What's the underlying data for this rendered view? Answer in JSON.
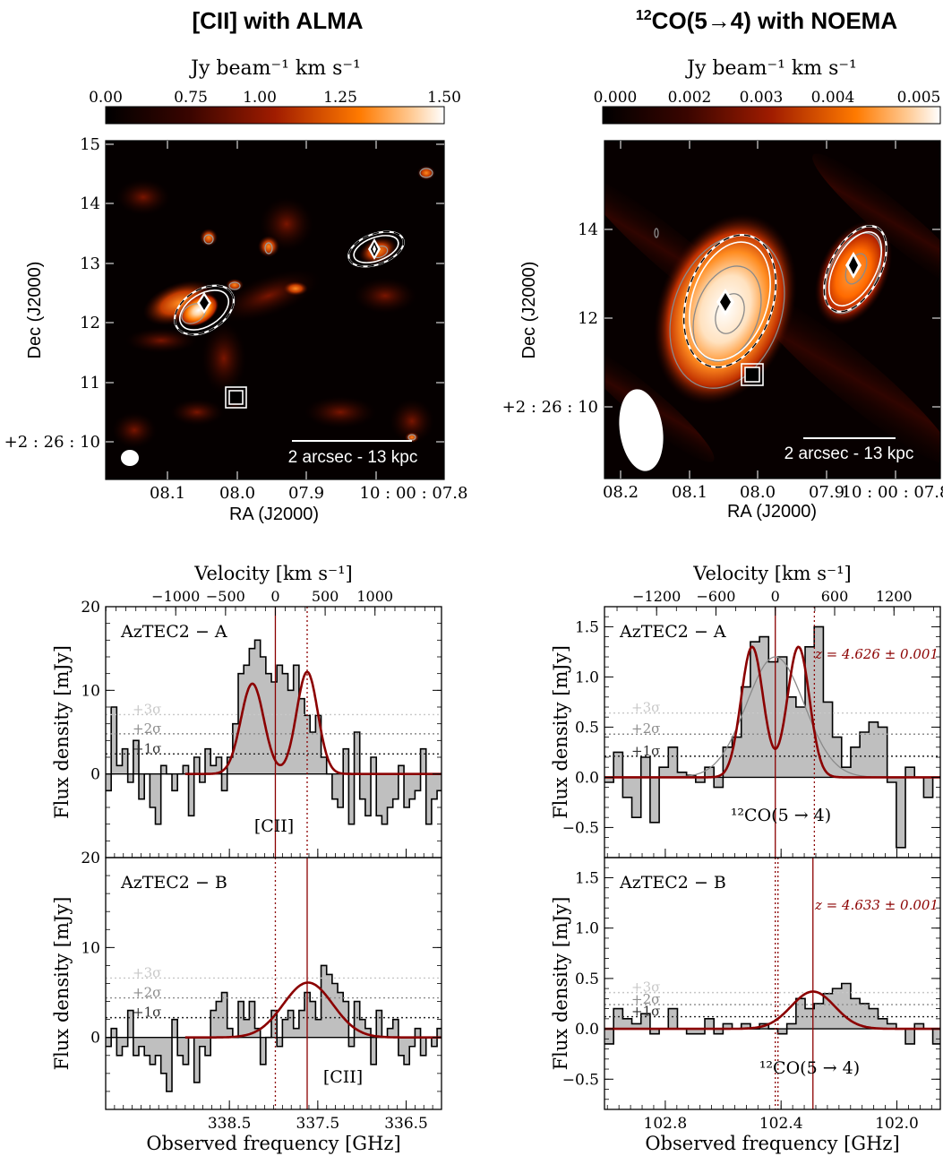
{
  "maps": {
    "left": {
      "title": "[CII] with ALMA",
      "cbar_label": "Jy beam⁻¹ km s⁻¹",
      "cbar_ticks": [
        "0.00",
        "0.75",
        "1.00",
        "1.25",
        "1.50"
      ],
      "y_ticks": [
        "15",
        "14",
        "13",
        "12",
        "11",
        "+2 : 26 : 10"
      ],
      "x_ticks": [
        "08.1",
        "08.0",
        "07.9",
        "10 : 00 : 07.8"
      ],
      "xlabel": "RA (J2000)",
      "ylabel": "Dec (J2000)",
      "scalebar": "2 arcsec - 13 kpc"
    },
    "right": {
      "title_sup": "12",
      "title_rest": "CO(5→4)  with NOEMA",
      "cbar_label": "Jy beam⁻¹ km s⁻¹",
      "cbar_ticks": [
        "0.000",
        "0.002",
        "0.003",
        "0.004",
        "0.005"
      ],
      "y_ticks": [
        "14",
        "12",
        "+2 : 26 : 10"
      ],
      "x_ticks": [
        "08.2",
        "08.1",
        "08.0",
        "07.9",
        "10 : 00 : 07.8"
      ],
      "xlabel": "RA (J2000)",
      "ylabel": "Dec (J2000)",
      "scalebar": "2 arcsec - 13 kpc"
    }
  },
  "colors": {
    "fit": "#8b0000",
    "hist_fill": "#bfbfbf",
    "band": "#e9c9b8",
    "sigma1": "#222222",
    "sigma2": "#8c8c8c",
    "sigma3": "#c8c8c8",
    "broad": "#8a8a8a"
  },
  "chart_data": [
    {
      "type": "area",
      "panel": "cii-a",
      "label": "AzTEC2 − A",
      "line_label": "[CII]",
      "xlabel": "Observed frequency [GHz]",
      "ylabel": "Flux density [mJy]",
      "top_xlabel": "Velocity [km s⁻¹]",
      "top_ticks": [
        -1000,
        -500,
        0,
        500,
        1000
      ],
      "top_tick_labels": [
        "−1000",
        "−500",
        "0",
        "500",
        "1000"
      ],
      "xlim": [
        339.9,
        336.1
      ],
      "ylim": [
        -10,
        20
      ],
      "x_ticks": [
        338.5,
        337.5,
        336.5
      ],
      "x_tick_labels": [
        "338.5",
        "337.5",
        "336.5"
      ],
      "y_ticks": [
        0,
        10,
        20
      ],
      "y_tick_labels": [
        "0",
        "10",
        "20"
      ],
      "sigma": {
        "s1": 2.4,
        "s2": 4.8,
        "s3": 7.1
      },
      "sigma_labels": [
        "+3σ",
        "+2σ",
        "+1σ"
      ],
      "solid_line_x": 337.98,
      "dotted_line_x": 337.62,
      "band": [
        337.58,
        337.73
      ],
      "steps": {
        "x0": 339.9,
        "dx": -0.0625,
        "y": [
          -2,
          8,
          1,
          3,
          -1,
          4,
          -3,
          0,
          -4,
          -6,
          1,
          0,
          -2,
          0,
          1,
          -5,
          2,
          -1,
          3,
          1,
          2,
          -2,
          2,
          6,
          12,
          13,
          15,
          16,
          14,
          12,
          11,
          13,
          12,
          10,
          13,
          9,
          7,
          5,
          7,
          2,
          0,
          -3,
          -4,
          3,
          -6,
          5,
          -3,
          -5,
          2,
          -5,
          -6,
          -4,
          -3,
          1,
          -4,
          -3,
          -2,
          3,
          -6,
          -3,
          -2
        ]
      },
      "fit": {
        "type": "double_gauss",
        "peaks": [
          [
            338.24,
            10.8,
            0.13
          ],
          [
            337.62,
            12.2,
            0.12
          ]
        ]
      }
    },
    {
      "type": "area",
      "panel": "cii-b",
      "label": "AzTEC2 − B",
      "line_label": "[CII]",
      "xlabel": "Observed frequency [GHz]",
      "ylabel": "Flux density [mJy]",
      "xlim": [
        339.9,
        336.1
      ],
      "ylim": [
        -8,
        20
      ],
      "x_ticks": [
        338.5,
        337.5,
        336.5
      ],
      "x_tick_labels": [
        "338.5",
        "337.5",
        "336.5"
      ],
      "y_ticks": [
        0,
        10,
        20
      ],
      "y_tick_labels": [
        "0",
        "10",
        "20"
      ],
      "sigma": {
        "s1": 2.2,
        "s2": 4.4,
        "s3": 6.6
      },
      "sigma_labels": [
        "+3σ",
        "+2σ",
        "+1σ"
      ],
      "solid_line_x": 337.62,
      "dotted_line_x": 337.98,
      "band": [
        337.58,
        337.73
      ],
      "steps": {
        "x0": 339.9,
        "dx": -0.0625,
        "y": [
          -1,
          1,
          -2,
          -1,
          3,
          -2,
          -1,
          -2,
          -3,
          -2,
          -4,
          -6,
          2,
          -2,
          -3,
          0,
          -5,
          -1,
          -2,
          3,
          4,
          5,
          1,
          0,
          4,
          2,
          4,
          1,
          -3,
          0,
          3,
          -1,
          2,
          3,
          1,
          3,
          5,
          4,
          2,
          8,
          7,
          6,
          5,
          4,
          -1,
          4,
          2,
          1,
          -3,
          3,
          0,
          1,
          2,
          -2,
          -3,
          -1,
          1,
          -2,
          0,
          -1,
          1
        ]
      },
      "fit": {
        "type": "gauss",
        "peaks": [
          [
            337.61,
            6.1,
            0.28
          ]
        ]
      }
    },
    {
      "type": "area",
      "panel": "co-a",
      "label": "AzTEC2 − A",
      "line_label": "¹²CO(5 → 4)",
      "redshift": "z = 4.626 ± 0.001",
      "xlabel": "Observed frequency [GHz]",
      "ylabel": "Flux density [mJy]",
      "top_xlabel": "Velocity [km s⁻¹]",
      "top_ticks": [
        -1200,
        -600,
        0,
        600,
        1200
      ],
      "top_tick_labels": [
        "−1200",
        "−600",
        "0",
        "600",
        "1200"
      ],
      "xlim": [
        103.01,
        101.85
      ],
      "ylim": [
        -0.8,
        1.7
      ],
      "x_ticks": [
        102.8,
        102.4,
        102.0
      ],
      "x_tick_labels": [
        "102.8",
        "102.4",
        "102.0"
      ],
      "y_ticks": [
        -0.5,
        0,
        0.5,
        1.0,
        1.5
      ],
      "y_tick_labels": [
        "−0.5",
        "0.0",
        "0.5",
        "1.0",
        "1.5"
      ],
      "sigma": {
        "s1": 0.21,
        "s2": 0.43,
        "s3": 0.64
      },
      "sigma_labels": [
        "+3σ",
        "+2σ",
        "+1σ"
      ],
      "solid_line_x": 102.42,
      "dotted_line_x": 102.285,
      "steps": {
        "x0": 103.01,
        "dx": -0.0315,
        "y": [
          -0.05,
          0.25,
          -0.2,
          -0.4,
          0.2,
          -0.45,
          0.1,
          0.3,
          0.05,
          0.02,
          -0.05,
          0.1,
          -0.1,
          0.3,
          0.4,
          0.9,
          1.35,
          1.4,
          1.15,
          1.2,
          0.8,
          0.7,
          1.3,
          1.5,
          0.75,
          0.4,
          0.1,
          0.3,
          0.45,
          0.55,
          0.5,
          -0.05,
          -0.7,
          0.1,
          0.0,
          -0.2,
          0.0,
          0.2,
          0.25
        ]
      },
      "fit": {
        "type": "double_gauss",
        "peaks": [
          [
            102.5,
            1.3,
            0.038
          ],
          [
            102.34,
            1.3,
            0.038
          ]
        ]
      },
      "broad_fit": {
        "center": 102.42,
        "amp": 1.2,
        "width": 0.1
      }
    },
    {
      "type": "area",
      "panel": "co-b",
      "label": "AzTEC2 − B",
      "line_label": "¹²CO(5 → 4)",
      "redshift": "z = 4.633 ± 0.001",
      "xlabel": "Observed frequency [GHz]",
      "ylabel": "Flux density [mJy]",
      "xlim": [
        103.01,
        101.85
      ],
      "ylim": [
        -0.8,
        1.7
      ],
      "x_ticks": [
        102.8,
        102.4,
        102.0
      ],
      "x_tick_labels": [
        "102.8",
        "102.4",
        "102.0"
      ],
      "y_ticks": [
        -0.5,
        0,
        0.5,
        1.0,
        1.5
      ],
      "y_tick_labels": [
        "−0.5",
        "0.0",
        "0.5",
        "1.0",
        "1.5"
      ],
      "sigma": {
        "s1": 0.12,
        "s2": 0.24,
        "s3": 0.36
      },
      "sigma_labels": [
        "+3σ",
        "+2σ",
        "+1σ"
      ],
      "solid_line_x": 102.29,
      "dotted_line_x": 102.42,
      "steps": {
        "x0": 103.01,
        "dx": -0.0315,
        "y": [
          -0.15,
          0.2,
          0.1,
          0.05,
          0.15,
          -0.05,
          0.0,
          0.2,
          0.0,
          -0.05,
          -0.05,
          0.1,
          -0.05,
          0.05,
          0.0,
          0.05,
          0.0,
          0.05,
          0.0,
          -0.05,
          0.05,
          0.3,
          0.2,
          0.25,
          0.35,
          0.4,
          0.45,
          0.3,
          0.25,
          0.2,
          0.1,
          0.05,
          0.0,
          -0.15,
          0.05,
          0.0,
          -0.15,
          0.0,
          0.1
        ]
      },
      "fit": {
        "type": "gauss",
        "peaks": [
          [
            102.29,
            0.37,
            0.075
          ]
        ]
      }
    }
  ]
}
